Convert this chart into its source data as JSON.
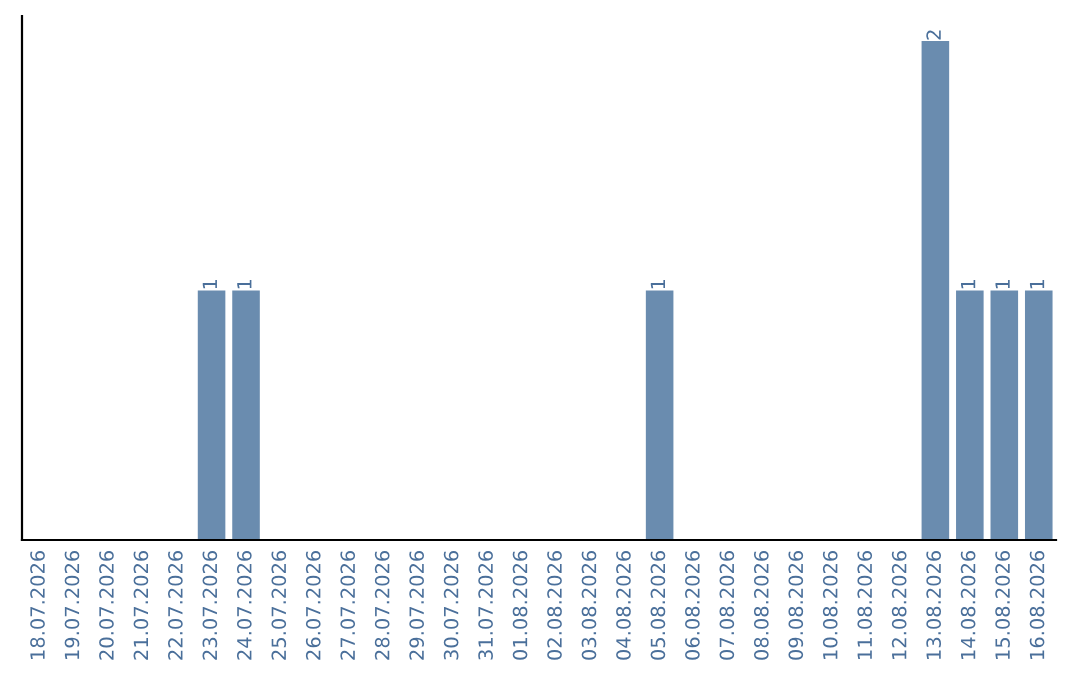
{
  "chart_data": {
    "type": "bar",
    "categories": [
      "18.07.2026",
      "19.07.2026",
      "20.07.2026",
      "21.07.2026",
      "22.07.2026",
      "23.07.2026",
      "24.07.2026",
      "25.07.2026",
      "26.07.2026",
      "27.07.2026",
      "28.07.2026",
      "29.07.2026",
      "30.07.2026",
      "31.07.2026",
      "01.08.2026",
      "02.08.2026",
      "03.08.2026",
      "04.08.2026",
      "05.08.2026",
      "06.08.2026",
      "07.08.2026",
      "08.08.2026",
      "09.08.2026",
      "10.08.2026",
      "11.08.2026",
      "12.08.2026",
      "13.08.2026",
      "14.08.2026",
      "15.08.2026",
      "16.08.2026"
    ],
    "values": [
      0,
      0,
      0,
      0,
      0,
      1,
      1,
      0,
      0,
      0,
      0,
      0,
      0,
      0,
      0,
      0,
      0,
      0,
      1,
      0,
      0,
      0,
      0,
      0,
      0,
      0,
      2,
      1,
      1,
      1
    ],
    "color": "#6a8caf",
    "value_labels": [
      null,
      null,
      null,
      null,
      null,
      "1",
      "1",
      null,
      null,
      null,
      null,
      null,
      null,
      null,
      null,
      null,
      null,
      null,
      "1",
      null,
      null,
      null,
      null,
      null,
      null,
      null,
      "2",
      "1",
      "1",
      "1"
    ],
    "tick_labels": "x",
    "grid": false
  }
}
